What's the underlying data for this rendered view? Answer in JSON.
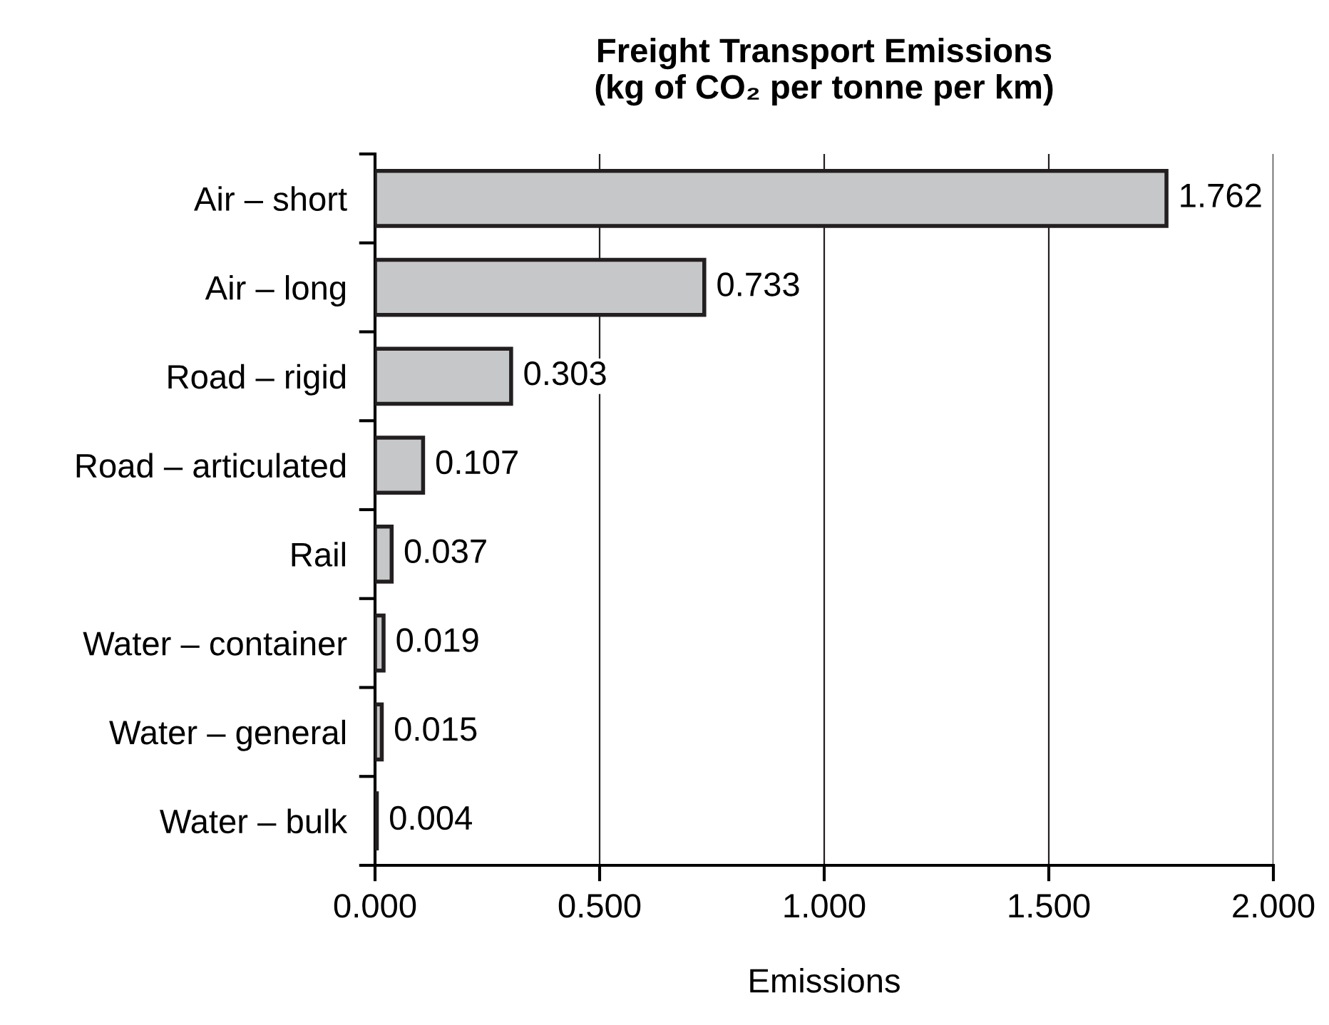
{
  "chart_data": {
    "type": "bar",
    "orientation": "horizontal",
    "title": "Freight Transport Emissions\n(kg of CO₂ per tonne per km)",
    "xlabel": "Emissions",
    "categories": [
      "Air – short",
      "Air – long",
      "Road – rigid",
      "Road – articulated",
      "Rail",
      "Water – container",
      "Water – general",
      "Water – bulk"
    ],
    "values": [
      1.762,
      0.733,
      0.303,
      0.107,
      0.037,
      0.019,
      0.015,
      0.004
    ],
    "color": "#c6c7c9",
    "data_labels": true,
    "grid": "x",
    "xlim": [
      0,
      2
    ],
    "xticks": [
      {
        "value": 0,
        "label": "0.000"
      },
      {
        "value": 0.5,
        "label": "0.500"
      },
      {
        "value": 1,
        "label": "1.000"
      },
      {
        "value": 1.5,
        "label": "1.500"
      },
      {
        "value": 2,
        "label": "2.000"
      }
    ]
  }
}
